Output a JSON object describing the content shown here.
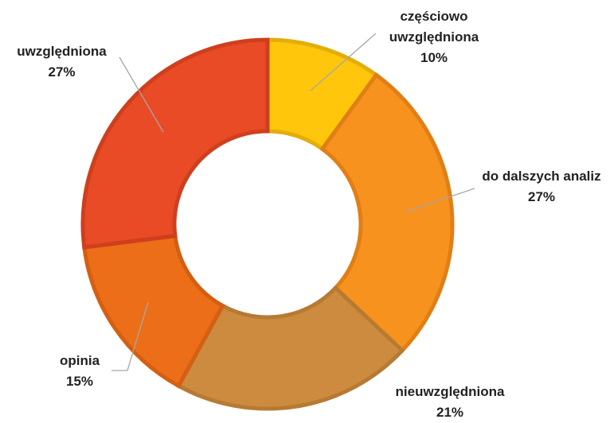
{
  "chart_data": {
    "type": "donut",
    "categories": [
      "częściowo uwzględniona",
      "do dalszych analiz",
      "nieuwzględniona",
      "opinia",
      "uwzględniona"
    ],
    "values": [
      10,
      27,
      21,
      15,
      27
    ],
    "value_labels": [
      "10%",
      "27%",
      "21%",
      "15%",
      "27%"
    ],
    "colors": [
      "#FFC60B",
      "#F7921E",
      "#CC8B3E",
      "#EC6E18",
      "#E84B25"
    ],
    "stroke_colors": [
      "#E3AD0A",
      "#E07F16",
      "#B77A33",
      "#D45F12",
      "#CF3F1E"
    ]
  }
}
